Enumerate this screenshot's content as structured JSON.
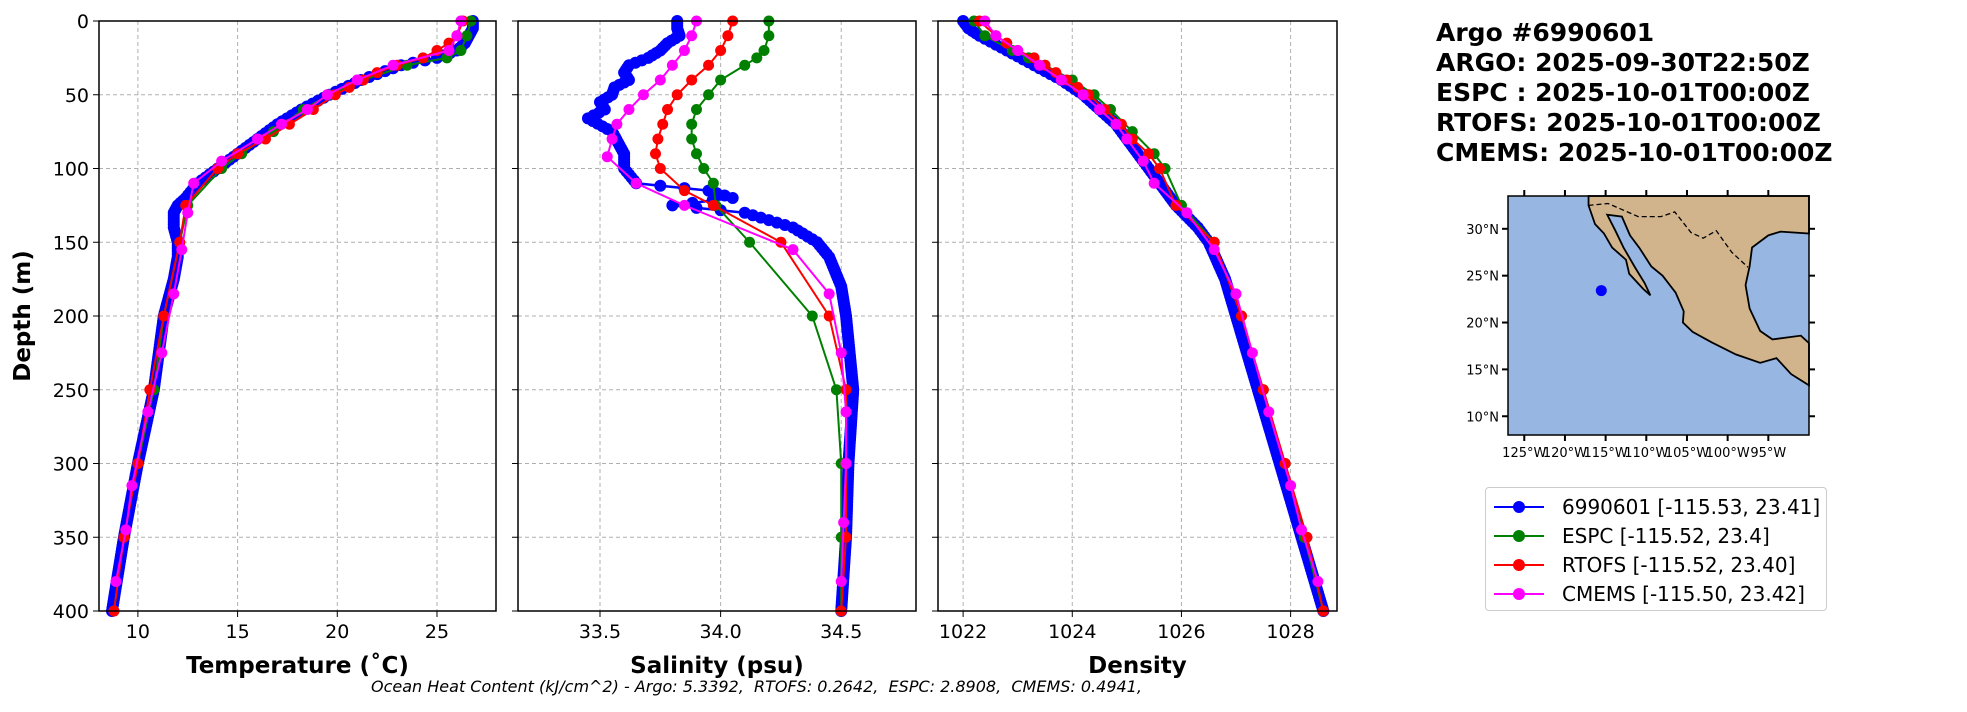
{
  "info": {
    "lines": [
      "Argo #6990601",
      "ARGO: 2025-09-30T22:50Z",
      "ESPC : 2025-10-01T00:00Z",
      "RTOFS: 2025-10-01T00:00Z",
      "CMEMS: 2025-10-01T00:00Z"
    ]
  },
  "ohc_text": "Ocean Heat Content (kJ/cm^2) - Argo: 5.3392,  RTOFS: 0.2642,  ESPC: 2.8908,  CMEMS: 0.4941,",
  "legend": [
    {
      "label": "6990601 [-115.53, 23.41]",
      "color": "#0000ff"
    },
    {
      "label": "ESPC [-115.52, 23.4]",
      "color": "#008000"
    },
    {
      "label": "RTOFS [-115.52, 23.40]",
      "color": "#ff0000"
    },
    {
      "label": "CMEMS [-115.50, 23.42]",
      "color": "#ff00ff"
    }
  ],
  "map": {
    "lat_ticks": [
      "30°N",
      "25°N",
      "20°N",
      "15°N",
      "10°N"
    ],
    "lon_ticks": [
      "125°W",
      "120°W",
      "115°W",
      "110°W",
      "105°W",
      "100°W",
      "95°W"
    ],
    "lat_values": [
      30,
      25,
      20,
      15,
      10
    ],
    "lon_values": [
      -125,
      -120,
      -115,
      -110,
      -105,
      -100,
      -95
    ],
    "xlim": [
      -127,
      -90
    ],
    "ylim": [
      8,
      33.5
    ],
    "float": [
      -115.53,
      23.41
    ],
    "ocean": "#97b6e1",
    "land": "#d2b48c"
  },
  "chart_data": [
    {
      "type": "line",
      "xlabel": "Temperature (˚C)",
      "ylabel": "Depth (m)",
      "xlim": [
        8.05,
        27.96
      ],
      "ylim": [
        400,
        0
      ],
      "xticks": [
        10,
        15,
        20,
        25
      ],
      "yticks": [
        0,
        50,
        100,
        150,
        200,
        250,
        300,
        350,
        400
      ],
      "grid": true,
      "series": [
        {
          "name": "6990601",
          "color": "#0000ff",
          "depth": [
            0,
            5,
            10,
            15,
            20,
            25,
            30,
            40,
            50,
            60,
            70,
            80,
            90,
            100,
            110,
            120,
            125,
            130,
            140,
            150,
            160,
            175,
            200,
            250,
            300,
            350,
            400
          ],
          "values": [
            26.8,
            26.8,
            26.6,
            26.4,
            26.0,
            25.0,
            23.2,
            21.2,
            19.6,
            18.2,
            17.0,
            16.0,
            15.0,
            14.0,
            13.0,
            12.4,
            12.0,
            11.8,
            11.8,
            12.0,
            12.0,
            11.8,
            11.3,
            10.8,
            10.0,
            9.3,
            8.7
          ]
        },
        {
          "name": "ESPC",
          "color": "#008000",
          "depth": [
            0,
            10,
            20,
            25,
            30,
            40,
            50,
            60,
            75,
            90,
            100,
            125,
            150,
            200,
            250,
            300,
            350,
            400
          ],
          "values": [
            26.7,
            26.5,
            26.2,
            25.5,
            23.5,
            21.3,
            19.6,
            18.3,
            16.8,
            15.2,
            14.2,
            12.5,
            12.1,
            11.3,
            10.8,
            10.0,
            9.3,
            8.8
          ]
        },
        {
          "name": "RTOFS",
          "color": "#ff0000",
          "depth": [
            0,
            10,
            15,
            20,
            25,
            30,
            35,
            40,
            45,
            50,
            60,
            70,
            80,
            90,
            100,
            125,
            150,
            200,
            250,
            300,
            350,
            400
          ],
          "values": [
            26.3,
            26.0,
            25.6,
            25.0,
            24.3,
            23.0,
            22.0,
            21.3,
            20.6,
            19.9,
            18.8,
            17.6,
            16.4,
            15.0,
            14.0,
            12.4,
            12.1,
            11.3,
            10.6,
            10.0,
            9.3,
            8.8
          ]
        },
        {
          "name": "CMEMS",
          "color": "#ff00ff",
          "depth": [
            0,
            10,
            20,
            30,
            40,
            50,
            60,
            70,
            80,
            95,
            110,
            130,
            155,
            185,
            225,
            265,
            315,
            345,
            380
          ],
          "values": [
            26.2,
            26.0,
            25.6,
            22.8,
            21.0,
            19.5,
            18.5,
            17.2,
            16.0,
            14.2,
            12.8,
            12.5,
            12.2,
            11.8,
            11.2,
            10.5,
            9.7,
            9.4,
            8.9
          ]
        }
      ]
    },
    {
      "type": "line",
      "xlabel": "Salinity (psu)",
      "xlim": [
        33.16,
        34.81
      ],
      "ylim": [
        400,
        0
      ],
      "xticks": [
        33.5,
        34.0,
        34.5
      ],
      "xticklabels": [
        "33.5",
        "34.0",
        "34.5"
      ],
      "grid": true,
      "series": [
        {
          "name": "6990601",
          "color": "#0000ff",
          "depth": [
            0,
            5,
            10,
            15,
            20,
            25,
            30,
            35,
            40,
            45,
            50,
            55,
            60,
            66,
            75,
            90,
            100,
            110,
            115,
            120,
            125,
            130,
            135,
            140,
            150,
            160,
            180,
            200,
            250,
            300,
            350,
            400
          ],
          "values": [
            33.82,
            33.82,
            33.83,
            33.78,
            33.75,
            33.7,
            33.62,
            33.6,
            33.62,
            33.56,
            33.55,
            33.5,
            33.52,
            33.45,
            33.55,
            33.6,
            33.6,
            33.65,
            33.95,
            34.05,
            33.8,
            34.1,
            34.2,
            34.3,
            34.4,
            34.45,
            34.5,
            34.52,
            34.55,
            34.53,
            34.52,
            34.5
          ]
        },
        {
          "name": "ESPC",
          "color": "#008000",
          "depth": [
            0,
            10,
            20,
            25,
            30,
            40,
            50,
            60,
            70,
            80,
            90,
            100,
            110,
            125,
            150,
            200,
            250,
            300,
            350,
            400
          ],
          "values": [
            34.2,
            34.2,
            34.18,
            34.15,
            34.1,
            34.0,
            33.95,
            33.9,
            33.88,
            33.88,
            33.9,
            33.93,
            33.97,
            33.98,
            34.12,
            34.38,
            34.48,
            34.5,
            34.5,
            34.5
          ]
        },
        {
          "name": "RTOFS",
          "color": "#ff0000",
          "depth": [
            0,
            10,
            20,
            30,
            40,
            50,
            60,
            70,
            80,
            90,
            100,
            115,
            125,
            150,
            200,
            250,
            300,
            350,
            400
          ],
          "values": [
            34.05,
            34.03,
            34.0,
            33.95,
            33.88,
            33.82,
            33.78,
            33.76,
            33.74,
            33.73,
            33.75,
            33.85,
            33.97,
            34.25,
            34.45,
            34.52,
            34.52,
            34.52,
            34.5
          ]
        },
        {
          "name": "CMEMS",
          "color": "#ff00ff",
          "depth": [
            0,
            10,
            20,
            30,
            40,
            50,
            60,
            70,
            80,
            92,
            110,
            125,
            155,
            185,
            225,
            265,
            300,
            340,
            380
          ],
          "values": [
            33.9,
            33.88,
            33.85,
            33.8,
            33.75,
            33.68,
            33.62,
            33.57,
            33.55,
            33.53,
            33.65,
            33.85,
            34.3,
            34.45,
            34.5,
            34.52,
            34.52,
            34.51,
            34.5
          ]
        }
      ]
    },
    {
      "type": "line",
      "xlabel": "Density",
      "xlim": [
        1021.54,
        1028.85
      ],
      "ylim": [
        400,
        0
      ],
      "xticks": [
        1022,
        1024,
        1026,
        1028
      ],
      "grid": true,
      "series": [
        {
          "name": "6990601",
          "color": "#0000ff",
          "depth": [
            0,
            5,
            10,
            20,
            30,
            40,
            50,
            60,
            70,
            80,
            90,
            100,
            110,
            125,
            140,
            150,
            175,
            200,
            250,
            300,
            350,
            400
          ],
          "values": [
            1022.0,
            1022.1,
            1022.3,
            1022.8,
            1023.3,
            1023.8,
            1024.2,
            1024.5,
            1024.8,
            1025.0,
            1025.2,
            1025.4,
            1025.6,
            1025.9,
            1026.3,
            1026.5,
            1026.8,
            1027.0,
            1027.4,
            1027.8,
            1028.2,
            1028.6
          ]
        },
        {
          "name": "ESPC",
          "color": "#008000",
          "depth": [
            0,
            10,
            20,
            25,
            30,
            40,
            50,
            60,
            75,
            90,
            100,
            125,
            150,
            200,
            250,
            300,
            350,
            400
          ],
          "values": [
            1022.2,
            1022.4,
            1022.9,
            1023.2,
            1023.5,
            1024.0,
            1024.4,
            1024.7,
            1025.1,
            1025.5,
            1025.7,
            1026.0,
            1026.6,
            1027.1,
            1027.5,
            1027.9,
            1028.25,
            1028.6
          ]
        },
        {
          "name": "RTOFS",
          "color": "#ff0000",
          "depth": [
            0,
            10,
            15,
            20,
            25,
            30,
            35,
            40,
            45,
            50,
            60,
            70,
            80,
            90,
            100,
            125,
            150,
            200,
            250,
            300,
            350,
            400
          ],
          "values": [
            1022.3,
            1022.6,
            1022.8,
            1023.0,
            1023.3,
            1023.5,
            1023.7,
            1023.9,
            1024.1,
            1024.3,
            1024.6,
            1024.9,
            1025.1,
            1025.4,
            1025.6,
            1025.9,
            1026.6,
            1027.1,
            1027.5,
            1027.9,
            1028.3,
            1028.6
          ]
        },
        {
          "name": "CMEMS",
          "color": "#ff00ff",
          "depth": [
            0,
            10,
            20,
            30,
            40,
            50,
            60,
            70,
            80,
            95,
            110,
            130,
            155,
            185,
            225,
            265,
            315,
            345,
            380
          ],
          "values": [
            1022.4,
            1022.6,
            1023.0,
            1023.4,
            1023.8,
            1024.2,
            1024.5,
            1024.8,
            1025.0,
            1025.3,
            1025.5,
            1026.1,
            1026.6,
            1027.0,
            1027.3,
            1027.6,
            1028.0,
            1028.2,
            1028.5
          ]
        }
      ]
    }
  ]
}
